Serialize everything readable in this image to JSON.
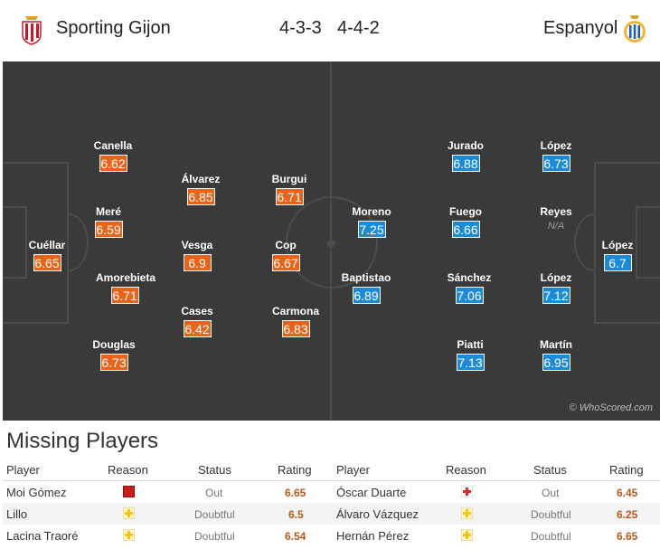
{
  "header": {
    "home_team": "Sporting Gijon",
    "home_formation": "4-3-3",
    "away_formation": "4-4-2",
    "away_team": "Espanyol"
  },
  "colors": {
    "home_rating": "#e8641b",
    "away_rating": "#1c8ad6",
    "pitch": "#3a3a3a"
  },
  "pitch": {
    "home": [
      {
        "name": "Cuéllar",
        "rating": "6.65"
      },
      {
        "name": "Canella",
        "rating": "6.62"
      },
      {
        "name": "Meré",
        "rating": "6.59"
      },
      {
        "name": "Amorebieta",
        "rating": "6.71"
      },
      {
        "name": "Douglas",
        "rating": "6.73"
      },
      {
        "name": "Álvarez",
        "rating": "6.85"
      },
      {
        "name": "Vesga",
        "rating": "6.9"
      },
      {
        "name": "Cases",
        "rating": "6.42"
      },
      {
        "name": "Burgui",
        "rating": "6.71"
      },
      {
        "name": "Cop",
        "rating": "6.67"
      },
      {
        "name": "Carmona",
        "rating": "6.83"
      }
    ],
    "away": [
      {
        "name": "Moreno",
        "rating": "7.25"
      },
      {
        "name": "Baptistao",
        "rating": "6.89"
      },
      {
        "name": "Jurado",
        "rating": "6.88"
      },
      {
        "name": "Fuego",
        "rating": "6.66"
      },
      {
        "name": "Sánchez",
        "rating": "7.06"
      },
      {
        "name": "Piatti",
        "rating": "7.13"
      },
      {
        "name": "López",
        "rating": "6.73"
      },
      {
        "name": "Reyes",
        "rating": "N/A"
      },
      {
        "name": "López",
        "rating": "7.12"
      },
      {
        "name": "Martín",
        "rating": "6.95"
      },
      {
        "name": "López",
        "rating": "6.7"
      }
    ],
    "watermark": "© WhoScored.com"
  },
  "missing": {
    "title": "Missing Players",
    "columns": {
      "player": "Player",
      "reason": "Reason",
      "status": "Status",
      "rating": "Rating"
    },
    "home": [
      {
        "player": "Moi Gómez",
        "reason_icon": "red-card-icon",
        "status": "Out",
        "rating": "6.65"
      },
      {
        "player": "Lillo",
        "reason_icon": "doubtful-icon",
        "status": "Doubtful",
        "rating": "6.5"
      },
      {
        "player": "Lacina Traoré",
        "reason_icon": "doubtful-icon",
        "status": "Doubtful",
        "rating": "6.54"
      }
    ],
    "away": [
      {
        "player": "Óscar Duarte",
        "reason_icon": "injury-icon",
        "status": "Out",
        "rating": "6.45"
      },
      {
        "player": "Álvaro Vázquez",
        "reason_icon": "doubtful-icon",
        "status": "Doubtful",
        "rating": "6.25"
      },
      {
        "player": "Hernán Pérez",
        "reason_icon": "doubtful-icon",
        "status": "Doubtful",
        "rating": "6.65"
      }
    ]
  }
}
